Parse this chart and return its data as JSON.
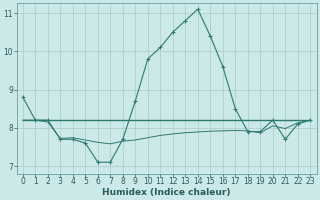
{
  "xlabel": "Humidex (Indice chaleur)",
  "background_color": "#cce9e9",
  "grid_color": "#aacccc",
  "grid_color_minor": "#ddeeee",
  "line_color": "#2d7a6e",
  "xlim": [
    -0.5,
    23.5
  ],
  "ylim": [
    6.8,
    11.25
  ],
  "yticks": [
    7,
    8,
    9,
    10,
    11
  ],
  "xticks": [
    0,
    1,
    2,
    3,
    4,
    5,
    6,
    7,
    8,
    9,
    10,
    11,
    12,
    13,
    14,
    15,
    16,
    17,
    18,
    19,
    20,
    21,
    22,
    23
  ],
  "series1": [
    8.8,
    8.2,
    8.2,
    7.7,
    7.7,
    7.6,
    7.1,
    7.1,
    7.7,
    8.7,
    9.8,
    10.1,
    10.5,
    10.8,
    11.1,
    10.4,
    9.6,
    8.5,
    7.9,
    7.9,
    8.2,
    7.7,
    8.1,
    8.2
  ],
  "series2": [
    8.2,
    8.2,
    8.2,
    8.2,
    8.2,
    8.2,
    8.2,
    8.2,
    8.2,
    8.2,
    8.2,
    8.2,
    8.2,
    8.2,
    8.2,
    8.2,
    8.2,
    8.2,
    8.2,
    8.2,
    8.2,
    8.2,
    8.2,
    8.2
  ],
  "series3": [
    8.2,
    8.2,
    8.15,
    7.72,
    7.74,
    7.68,
    7.62,
    7.58,
    7.65,
    7.68,
    7.74,
    7.8,
    7.84,
    7.87,
    7.89,
    7.91,
    7.92,
    7.93,
    7.92,
    7.87,
    8.05,
    7.98,
    8.13,
    8.2
  ],
  "tick_fontsize": 5.5,
  "xlabel_fontsize": 6.5
}
